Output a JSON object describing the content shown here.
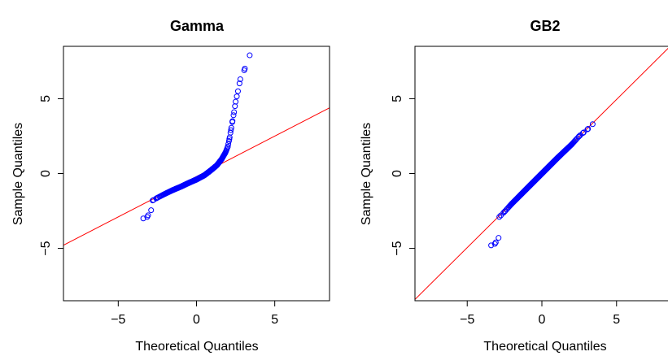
{
  "chart_data": [
    {
      "type": "scatter",
      "title": "Gamma",
      "xlabel": "Theoretical Quantiles",
      "ylabel": "Sample Quantiles",
      "xlim": [
        -8.5,
        8.5
      ],
      "ylim": [
        -8.5,
        8.5
      ],
      "xticks": [
        -5,
        0,
        5
      ],
      "yticks": [
        -5,
        0,
        5
      ],
      "xtick_labels": [
        "−5",
        "0",
        "5"
      ],
      "ytick_labels": [
        "−5",
        "0",
        "5"
      ],
      "grid": false,
      "point_color": "#0000ff",
      "line_color": "#ff0000",
      "ref_line": {
        "slope": 0.54,
        "intercept": -0.2
      },
      "anchors": [
        [
          -3.4,
          -3.0
        ],
        [
          -3.15,
          -2.9
        ],
        [
          -2.9,
          -2.45
        ],
        [
          -2.8,
          -1.8
        ],
        [
          -2.5,
          -1.62
        ],
        [
          -2.0,
          -1.35
        ],
        [
          -1.5,
          -1.1
        ],
        [
          -1.0,
          -0.88
        ],
        [
          -0.5,
          -0.63
        ],
        [
          0.0,
          -0.4
        ],
        [
          0.5,
          -0.12
        ],
        [
          0.9,
          0.2
        ],
        [
          1.3,
          0.55
        ],
        [
          1.6,
          0.95
        ],
        [
          1.85,
          1.4
        ],
        [
          2.0,
          1.8
        ],
        [
          2.1,
          2.3
        ],
        [
          2.2,
          2.9
        ],
        [
          2.3,
          3.5
        ],
        [
          2.4,
          4.1
        ],
        [
          2.5,
          4.8
        ],
        [
          2.65,
          5.5
        ],
        [
          2.8,
          6.3
        ],
        [
          3.05,
          6.9
        ],
        [
          3.4,
          7.9
        ]
      ]
    },
    {
      "type": "scatter",
      "title": "GB2",
      "xlabel": "Theoretical Quantiles",
      "ylabel": "Sample Quantiles",
      "xlim": [
        -8.5,
        8.5
      ],
      "ylim": [
        -8.5,
        8.5
      ],
      "xticks": [
        -5,
        0,
        5
      ],
      "yticks": [
        -5,
        0,
        5
      ],
      "xtick_labels": [
        "−5",
        "0",
        "5"
      ],
      "ytick_labels": [
        "−5",
        "0",
        "5"
      ],
      "grid": false,
      "point_color": "#0000ff",
      "line_color": "#ff0000",
      "ref_line": {
        "slope": 0.99,
        "intercept": 0.0
      },
      "anchors": [
        [
          -3.4,
          -4.8
        ],
        [
          -3.15,
          -4.7
        ],
        [
          -2.9,
          -4.3
        ],
        [
          -2.85,
          -2.9
        ],
        [
          -2.5,
          -2.55
        ],
        [
          -2.0,
          -2.0
        ],
        [
          -1.0,
          -1.0
        ],
        [
          0.0,
          0.0
        ],
        [
          1.0,
          1.0
        ],
        [
          2.0,
          1.95
        ],
        [
          2.5,
          2.5
        ],
        [
          2.8,
          2.75
        ],
        [
          3.05,
          2.95
        ],
        [
          3.4,
          3.3
        ]
      ]
    }
  ]
}
